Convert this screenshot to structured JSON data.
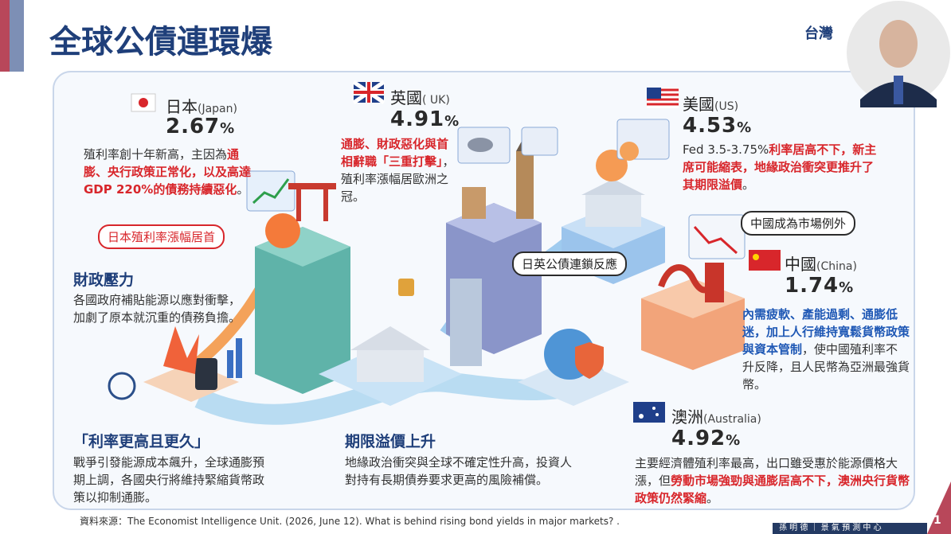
{
  "header": {
    "title": "全球公債連環爆",
    "logo": "台灣"
  },
  "japan": {
    "name": "日本",
    "en": "(Japan)",
    "value": "2.67",
    "unit": "%",
    "desc": [
      "殖利率創十年新高，主因為",
      "通膨、央行政策正常化，以及高達 GDP 220%的債務持續惡化",
      "。"
    ],
    "callout": "日本殖利率漲幅居首"
  },
  "uk": {
    "name": "英國",
    "en": "( UK)",
    "value": "4.91",
    "unit": "%",
    "desc": [
      "通膨、財政惡化與首相辭職「三重打擊」",
      "，殖利率漲幅居歐洲之冠。"
    ]
  },
  "us": {
    "name": "美國",
    "en": "(US)",
    "value": "4.53",
    "unit": "%",
    "desc": [
      "Fed 3.5-3.75%",
      "利率居高不下，新主席可能縮表，地緣政治衝突更推升了其期限溢價",
      "。"
    ]
  },
  "chain": "日英公債連鎖反應",
  "china": {
    "callout": "中國成為市場例外",
    "name": "中國",
    "en": "(China)",
    "value": "1.74",
    "unit": "%",
    "desc": [
      "內需疲軟、產能過剩、通膨低迷，加上人行維持寬鬆貨幣政策與資本管制",
      "，使中國殖利率不升反降，且人民幣為亞洲最強貨幣。"
    ]
  },
  "australia": {
    "name": "澳洲",
    "en": "(Australia)",
    "value": "4.92",
    "unit": "%",
    "desc": [
      "主要經濟體殖利率最高，出口雖受惠於能源價格大漲，但",
      "勞動市場強勁與通膨居高不下，澳洲央行貨幣政策仍然緊縮",
      "。"
    ]
  },
  "sections": [
    {
      "title": "財政壓力",
      "text": "各國政府補貼能源以應對衝擊，加劇了原本就沉重的債務負擔。"
    },
    {
      "title": "「利率更高且更久」",
      "text": "戰爭引發能源成本飆升，全球通膨預期上調，各國央行將維持緊縮貨幣政策以抑制通膨。"
    },
    {
      "title": "期限溢價上升",
      "text": "地緣政治衝突與全球不確定性升高，投資人對持有長期債券要求更高的風險補償。"
    }
  ],
  "source": "資料來源：The Economist Intelligence Unit. (2026, June 12). What is behind rising bond yields in major markets? .",
  "footer": {
    "presenter": "孫 明 德 ｜ 景 氣 預 測 中 心",
    "page": "1"
  }
}
